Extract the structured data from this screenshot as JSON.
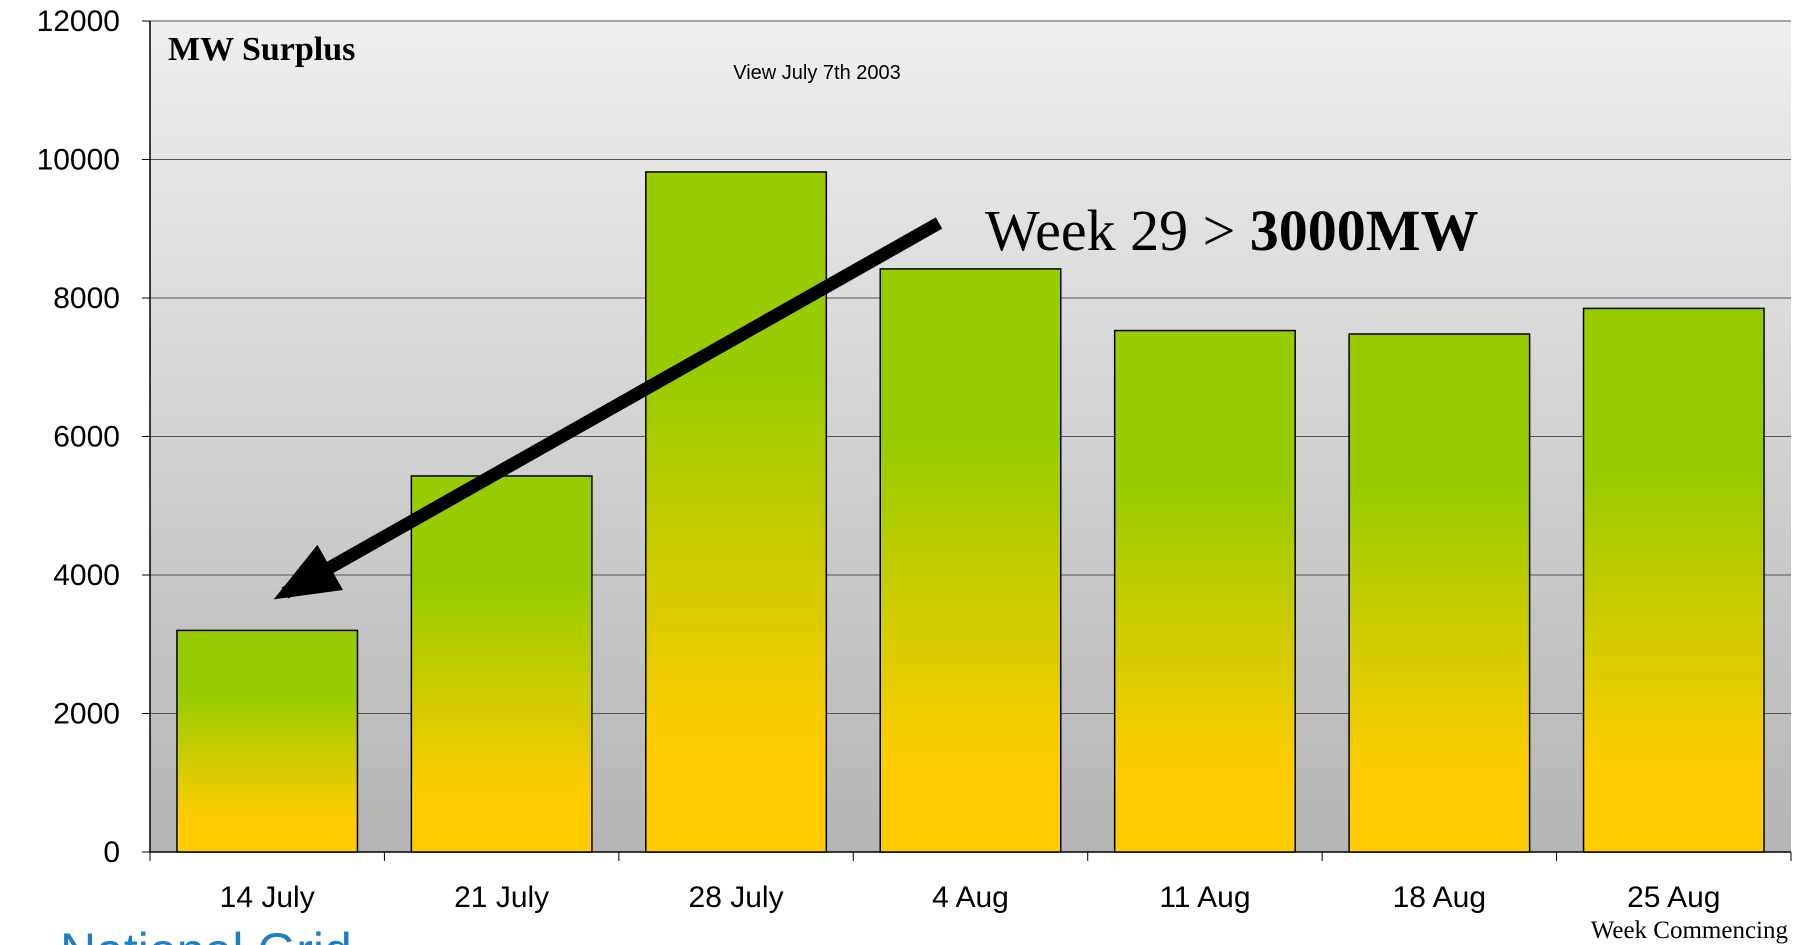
{
  "chart_data": {
    "type": "bar",
    "title": "MW Surplus",
    "subtitle": "View July 7th 2003",
    "x_label": "Week Commencing",
    "annotation": {
      "text": "Week 29 >",
      "emphasis": "3000MW"
    },
    "footer": "National Grid",
    "categories": [
      "14 July",
      "21 July",
      "28 July",
      "4 Aug",
      "11 Aug",
      "18 Aug",
      "25 Aug"
    ],
    "values": [
      3200,
      5430,
      9820,
      8420,
      7530,
      7480,
      7850
    ],
    "gradient": [
      "#99cc00",
      "#ffcc00"
    ],
    "ylim": [
      0,
      12000
    ],
    "yticks": [
      0,
      2000,
      4000,
      6000,
      8000,
      10000,
      12000
    ],
    "grid": true
  }
}
